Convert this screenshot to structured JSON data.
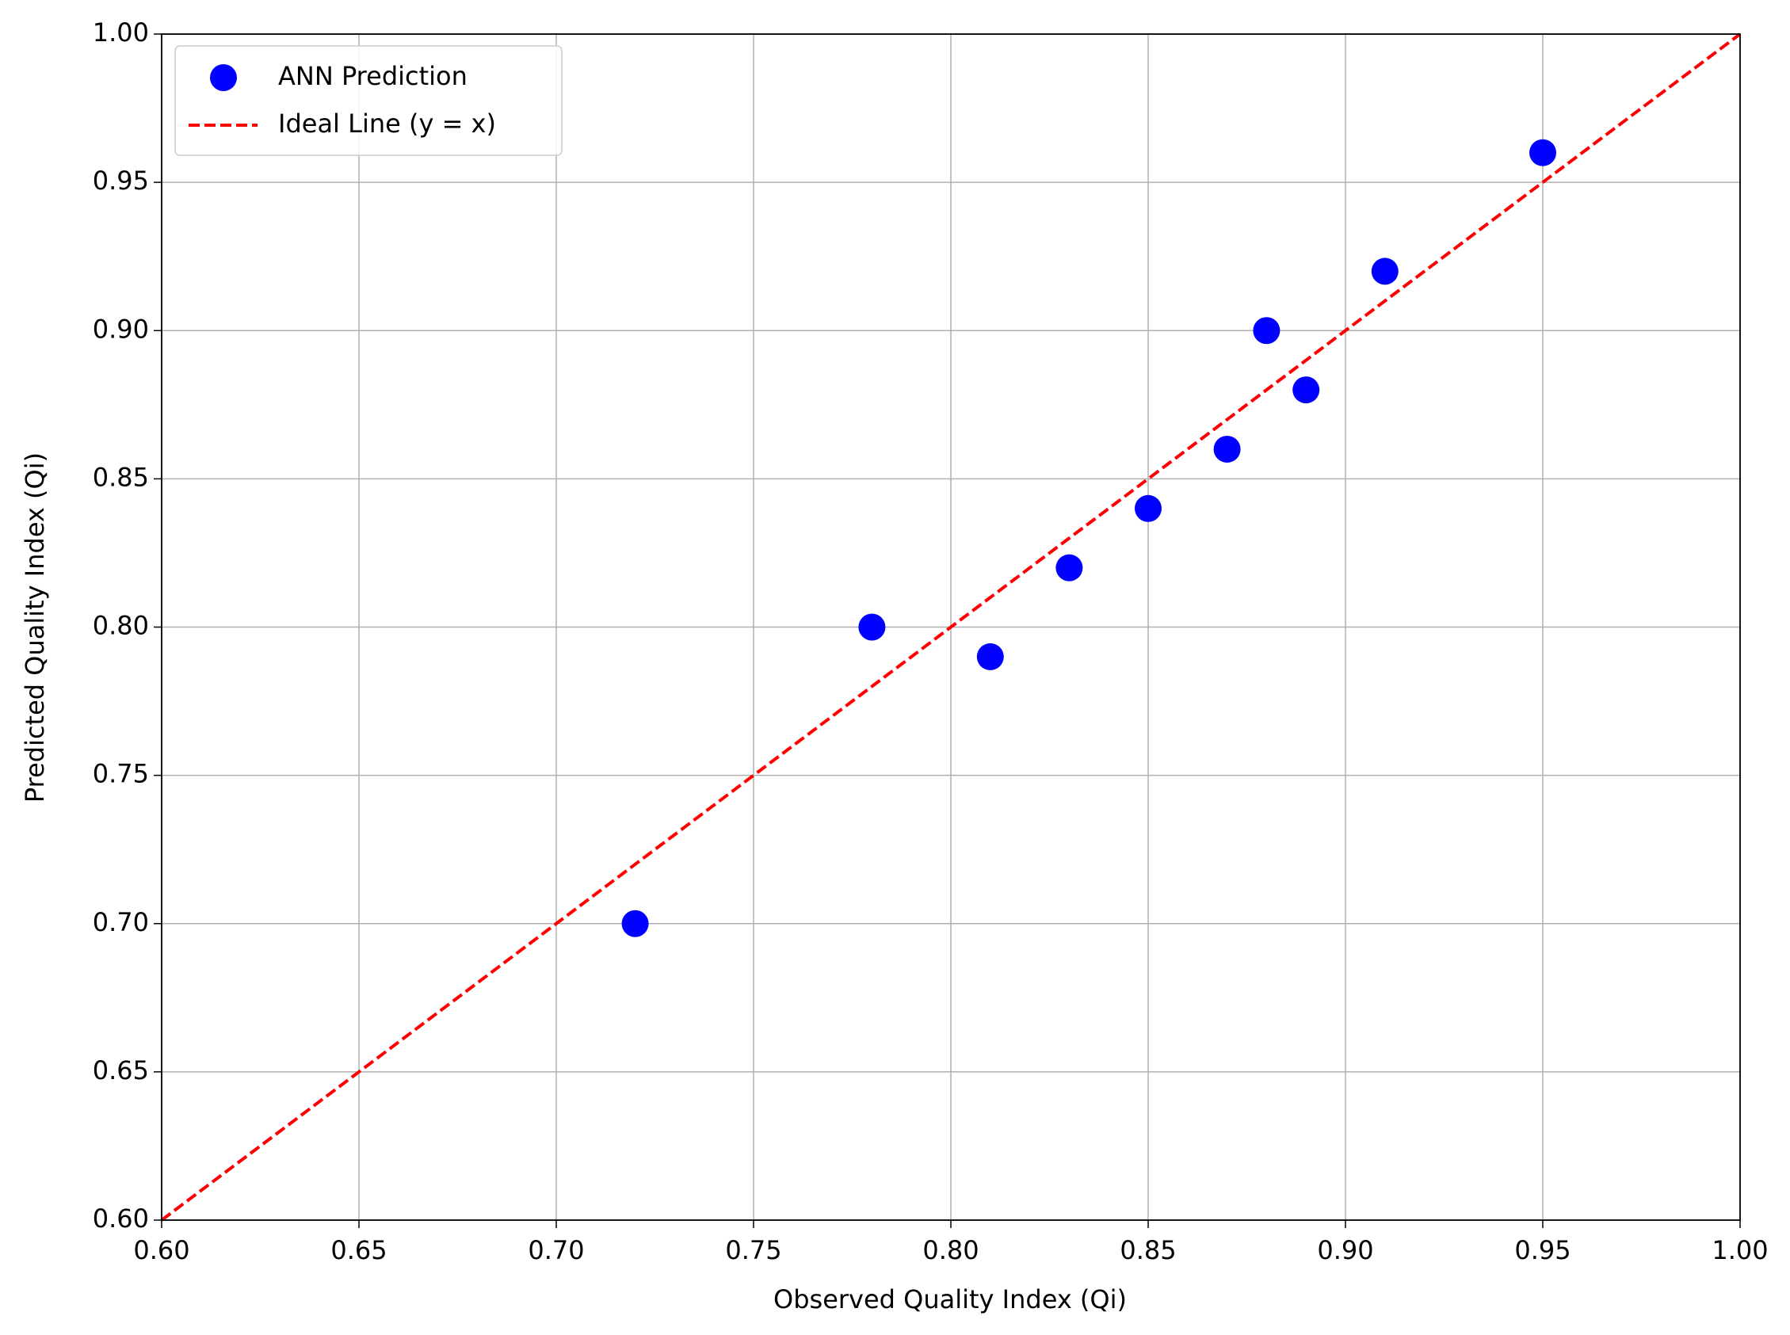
{
  "chart_data": {
    "type": "scatter",
    "xlabel": "Observed Quality Index (Qi)",
    "ylabel": "Predicted Quality Index (Qi)",
    "series": [
      {
        "name": "ANN Prediction",
        "type": "scatter",
        "color": "#0000ff",
        "x": [
          0.72,
          0.78,
          0.81,
          0.83,
          0.85,
          0.87,
          0.88,
          0.89,
          0.91,
          0.95
        ],
        "values": [
          0.7,
          0.8,
          0.79,
          0.82,
          0.84,
          0.86,
          0.9,
          0.88,
          0.92,
          0.96
        ]
      },
      {
        "name": "Ideal Line (y = x)",
        "type": "line",
        "color": "#ff0000",
        "dashed": true,
        "x": [
          0.6,
          1.0
        ],
        "values": [
          0.6,
          1.0
        ]
      }
    ],
    "xlim": [
      0.6,
      1.0
    ],
    "ylim": [
      0.6,
      1.0
    ],
    "xticks": [
      {
        "value": 0.6,
        "label": "0.60"
      },
      0.65,
      {
        "value": 0.7,
        "label": "0.70"
      },
      0.75,
      {
        "value": 0.8,
        "label": "0.80"
      },
      0.85,
      {
        "value": 0.9,
        "label": "0.90"
      },
      0.95,
      {
        "value": 1.0,
        "label": "1.00"
      }
    ],
    "yticks": [
      {
        "value": 0.6,
        "label": "0.60"
      },
      0.65,
      {
        "value": 0.7,
        "label": "0.70"
      },
      0.75,
      {
        "value": 0.8,
        "label": "0.80"
      },
      0.85,
      {
        "value": 0.9,
        "label": "0.90"
      },
      0.95,
      {
        "value": 1.0,
        "label": "1.00"
      }
    ],
    "grid": true,
    "legend": "upper left"
  }
}
